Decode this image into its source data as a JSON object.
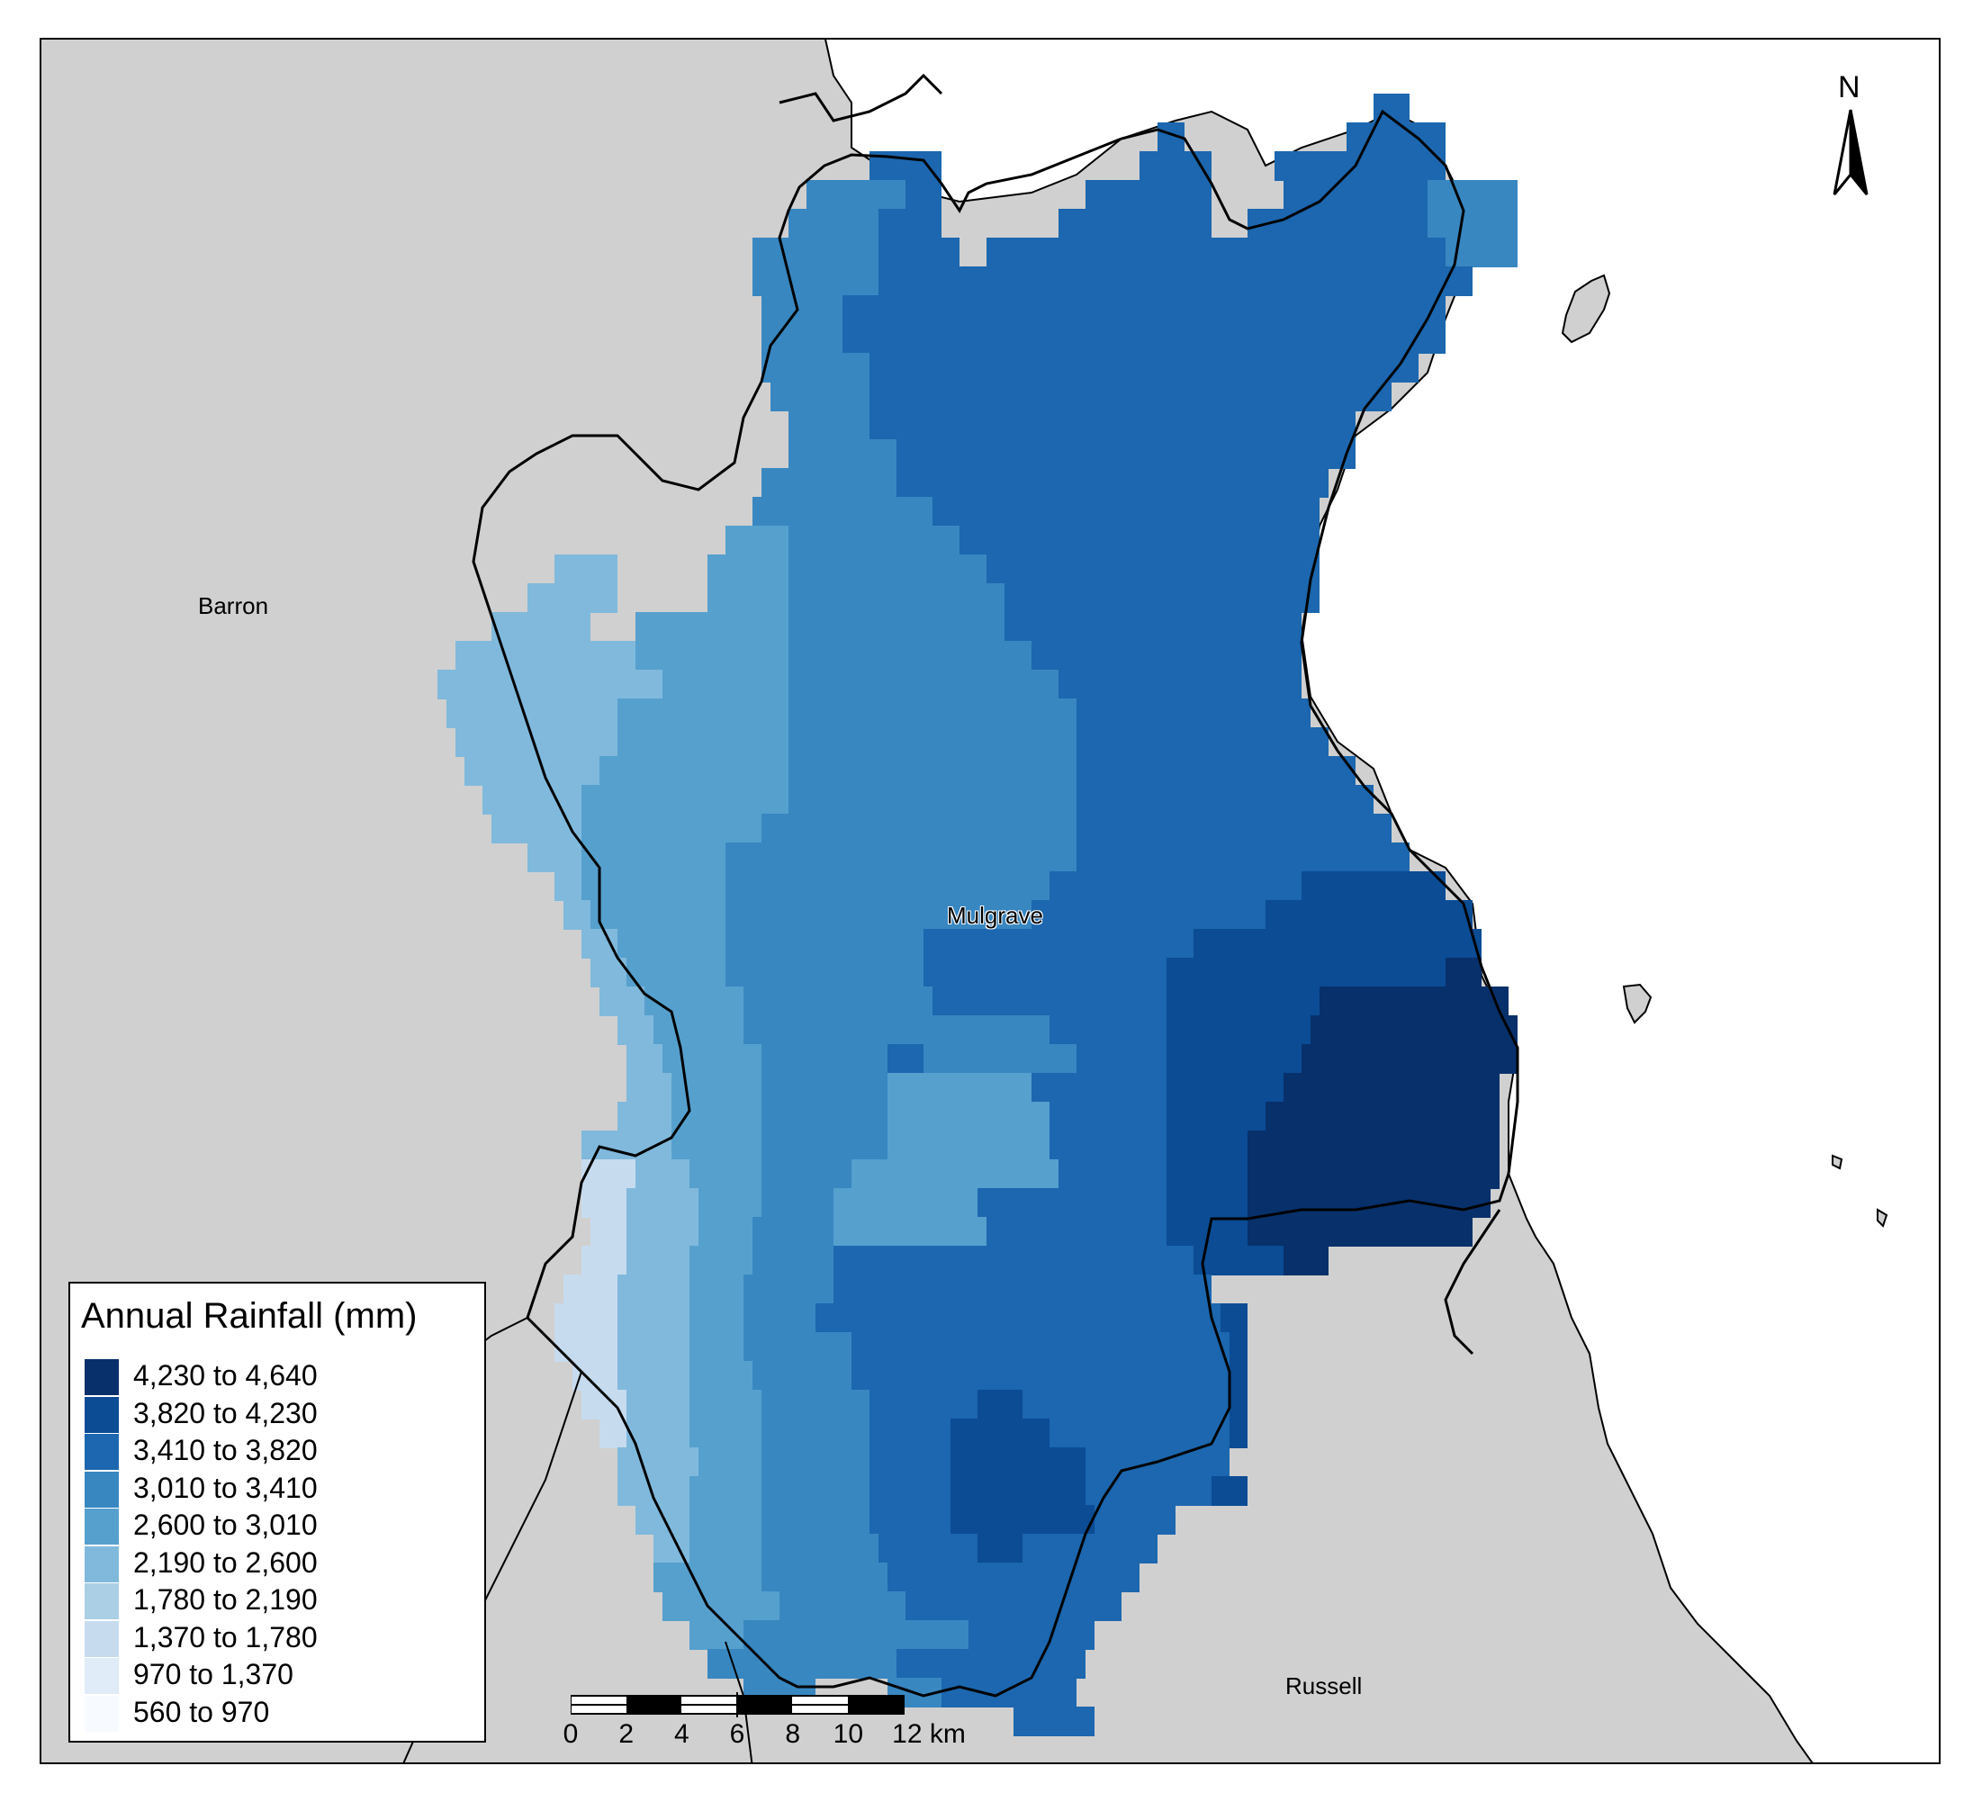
{
  "map": {
    "places": [
      {
        "name": "Barron"
      },
      {
        "name": "Mulgrave"
      },
      {
        "name": "Russell"
      }
    ],
    "north_label": "N",
    "legend": {
      "title": "Annual Rainfall (mm)",
      "classes": [
        {
          "label": "4,230 to 4,640",
          "color": "#08306b"
        },
        {
          "label": "3,820 to 4,230",
          "color": "#0b4c95"
        },
        {
          "label": "3,410 to 3,820",
          "color": "#1c67af"
        },
        {
          "label": "3,010 to 3,410",
          "color": "#3887c1"
        },
        {
          "label": "2,600 to 3,010",
          "color": "#56a0ce"
        },
        {
          "label": "2,190 to 2,600",
          "color": "#80b9dc"
        },
        {
          "label": "1,780 to 2,190",
          "color": "#abcfe5"
        },
        {
          "label": "1,370 to 1,780",
          "color": "#c7dbef"
        },
        {
          "label": "970 to 1,370",
          "color": "#e0ecf8"
        },
        {
          "label": "560 to 970",
          "color": "#f7fbff"
        }
      ]
    },
    "scale_bar": {
      "ticks": [
        "0",
        "2",
        "4",
        "6",
        "8",
        "10",
        "12 km"
      ]
    },
    "colors": {
      "land": "#d0d0d0",
      "sea": "#ffffff",
      "boundary": "#000000"
    }
  }
}
